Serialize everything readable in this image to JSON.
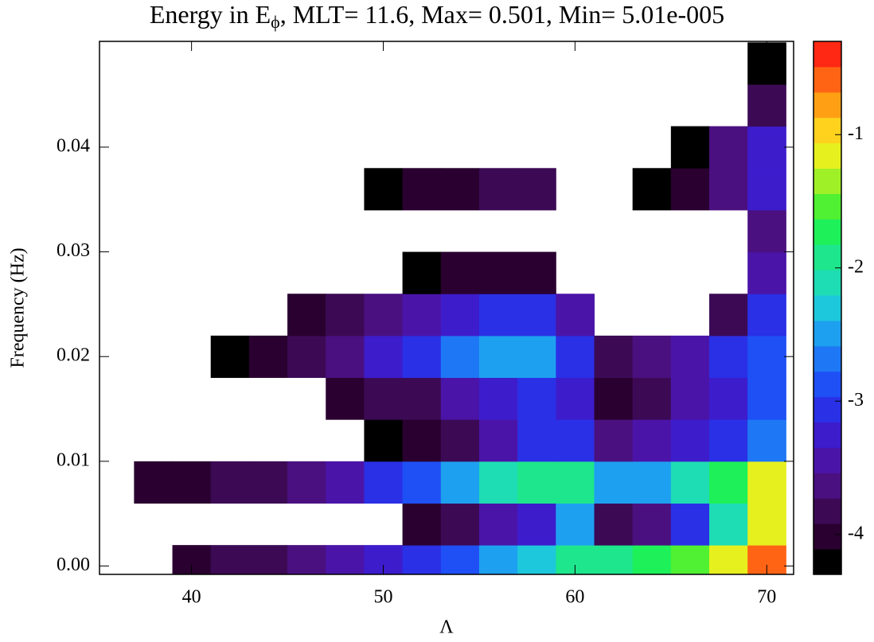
{
  "chart_data": {
    "type": "heatmap",
    "title": {
      "prefix": "Energy in E",
      "subscript": "ϕ",
      "rest": ", MLT=   11.6, Max=     0.501, Min= 5.01e-005"
    },
    "x_label": "Λ",
    "y_label": "Frequency (Hz)",
    "x": [
      36,
      38,
      40,
      42,
      44,
      46,
      48,
      50,
      52,
      54,
      56,
      58,
      60,
      62,
      64,
      66,
      68,
      70
    ],
    "y": [
      0,
      0.004,
      0.008,
      0.012,
      0.016,
      0.02,
      0.024,
      0.028,
      0.032,
      0.036,
      0.04,
      0.044,
      0.048
    ],
    "values": [
      [
        null,
        null,
        -4,
        -3.9,
        -3.8,
        -3.6,
        -3.4,
        -3.2,
        -3.0,
        -2.8,
        -2.5,
        -2.3,
        -2.0,
        -1.9,
        -1.7,
        -1.5,
        -1.2,
        -0.6
      ],
      [
        null,
        null,
        null,
        null,
        null,
        null,
        null,
        null,
        -4.1,
        -3.9,
        -3.5,
        -3.2,
        -2.5,
        -3.8,
        -3.6,
        -3.0,
        -2.2,
        -1.2
      ],
      [
        null,
        -4.1,
        -4.0,
        -3.9,
        -3.8,
        -3.6,
        -3.4,
        -3.1,
        -2.8,
        -2.5,
        -2.2,
        -1.9,
        -1.9,
        -2.5,
        -2.4,
        -2.2,
        -1.8,
        -1.2
      ],
      [
        null,
        null,
        null,
        null,
        null,
        null,
        null,
        -4.2,
        -4.0,
        -3.8,
        -3.4,
        -3.0,
        -3.1,
        -3.7,
        -3.5,
        -3.3,
        -3.0,
        -2.6
      ],
      [
        null,
        null,
        null,
        null,
        null,
        null,
        -4.1,
        -3.9,
        -3.8,
        -3.5,
        -3.2,
        -3.0,
        -3.2,
        -4.1,
        -3.9,
        -3.5,
        -3.2,
        -2.9
      ],
      [
        null,
        null,
        null,
        -4.2,
        -4.1,
        -3.9,
        -3.6,
        -3.3,
        -3.0,
        -2.7,
        -2.5,
        -2.4,
        -3.0,
        -3.9,
        -3.7,
        -3.4,
        -3.1,
        -2.8
      ],
      [
        null,
        null,
        null,
        null,
        null,
        -4.1,
        -3.9,
        -3.7,
        -3.5,
        -3.3,
        -3.1,
        -3.0,
        -3.5,
        null,
        null,
        null,
        -3.8,
        -3.1
      ],
      [
        null,
        null,
        null,
        null,
        null,
        null,
        null,
        null,
        -4.2,
        -4.1,
        -4.0,
        -4.0,
        null,
        null,
        null,
        null,
        null,
        -3.4
      ],
      [
        null,
        null,
        null,
        null,
        null,
        null,
        null,
        null,
        null,
        null,
        null,
        null,
        null,
        null,
        null,
        null,
        null,
        -3.6
      ],
      [
        null,
        null,
        null,
        null,
        null,
        null,
        null,
        -4.2,
        -4.1,
        -4.0,
        -3.8,
        -3.9,
        null,
        null,
        -4.2,
        -4.0,
        -3.6,
        -3.2
      ],
      [
        null,
        null,
        null,
        null,
        null,
        null,
        null,
        null,
        null,
        null,
        null,
        null,
        null,
        null,
        null,
        -4.2,
        -3.7,
        -3.3
      ],
      [
        null,
        null,
        null,
        null,
        null,
        null,
        null,
        null,
        null,
        null,
        null,
        null,
        null,
        null,
        null,
        null,
        null,
        -3.9
      ],
      [
        null,
        null,
        null,
        null,
        null,
        null,
        null,
        null,
        null,
        null,
        null,
        null,
        null,
        null,
        null,
        null,
        null,
        -4.2
      ]
    ],
    "xlim": [
      35.2,
      71.4
    ],
    "ylim": [
      -0.0008,
      0.0501
    ],
    "xticks": [
      40,
      50,
      60,
      70
    ],
    "yticks": [
      {
        "value": 0,
        "label": "0.00"
      },
      0.01,
      0.02,
      0.03,
      0.04
    ],
    "clim": [
      -4.3,
      -0.3
    ],
    "cticks": [
      -1,
      -2,
      -3,
      -4
    ],
    "colors": [
      "#000000",
      "#2a0030",
      "#3c0a55",
      "#4a1080",
      "#4b14a8",
      "#3d1ccc",
      "#2a30e6",
      "#1e50f5",
      "#1e78f5",
      "#1ea0f0",
      "#1ec8dc",
      "#1edcb4",
      "#1ee68c",
      "#1ef05a",
      "#50f032",
      "#a0f028",
      "#e6f01e",
      "#ffd21e",
      "#ffa014",
      "#ff6414",
      "#ff2814"
    ]
  }
}
